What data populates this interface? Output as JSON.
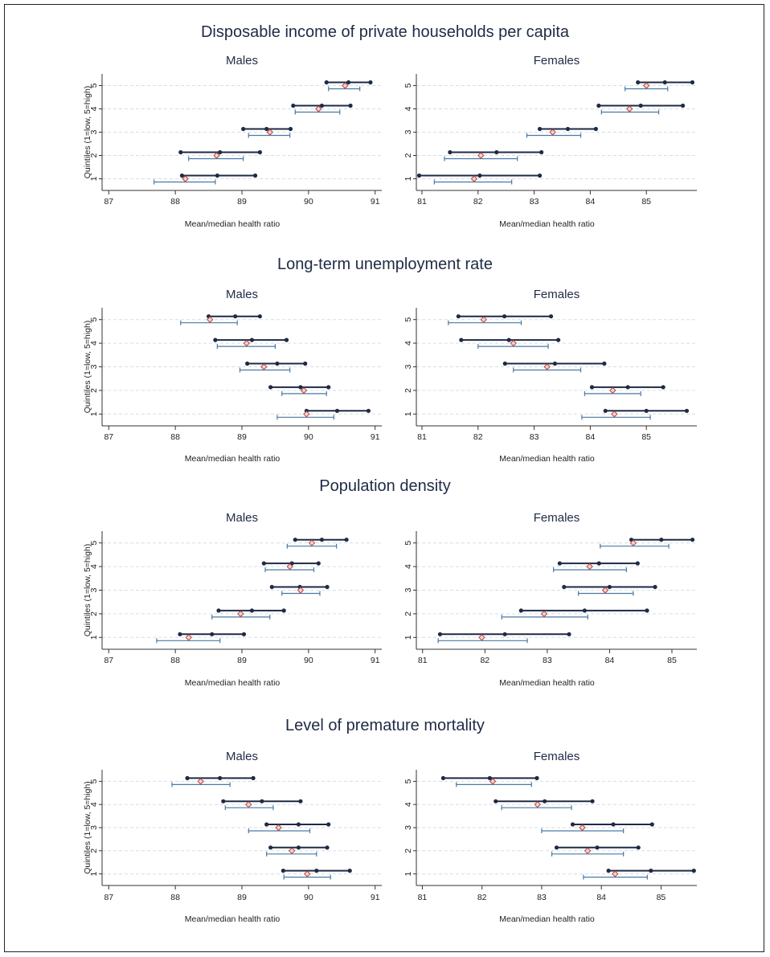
{
  "chart_data": [
    {
      "type": "dot-range",
      "title": "Disposable income of private households per capita",
      "ylabel": "Quintiles (1=low, 5=high)",
      "xlabel": "Mean/median health ratio",
      "panels": [
        {
          "name": "Males",
          "xlim": [
            86.9,
            91.1
          ],
          "xticks": [
            87,
            88,
            89,
            90,
            91
          ],
          "ticks": [
            "87",
            "88",
            "89",
            "90",
            "91"
          ],
          "rows": [
            {
              "q": 1,
              "dark": [
                88.1,
                88.63,
                89.2
              ],
              "red": 88.15,
              "ci": [
                87.68,
                88.6
              ]
            },
            {
              "q": 2,
              "dark": [
                88.08,
                88.67,
                89.27
              ],
              "red": 88.62,
              "ci": [
                88.2,
                89.02
              ]
            },
            {
              "q": 3,
              "dark": [
                89.02,
                89.37,
                89.73
              ],
              "red": 89.42,
              "ci": [
                89.1,
                89.72
              ]
            },
            {
              "q": 4,
              "dark": [
                89.77,
                90.2,
                90.63
              ],
              "red": 90.15,
              "ci": [
                89.8,
                90.47
              ]
            },
            {
              "q": 5,
              "dark": [
                90.27,
                90.6,
                90.93
              ],
              "red": 90.55,
              "ci": [
                90.3,
                90.77
              ]
            }
          ]
        },
        {
          "name": "Females",
          "xlim": [
            80.9,
            85.9
          ],
          "xticks": [
            81,
            82,
            83,
            84,
            85
          ],
          "ticks": [
            "81",
            "82",
            "83",
            "84",
            "85"
          ],
          "rows": [
            {
              "q": 1,
              "dark": [
                80.95,
                82.03,
                83.1
              ],
              "red": 81.93,
              "ci": [
                81.22,
                82.6
              ]
            },
            {
              "q": 2,
              "dark": [
                81.5,
                82.33,
                83.13
              ],
              "red": 82.05,
              "ci": [
                81.4,
                82.7
              ]
            },
            {
              "q": 3,
              "dark": [
                83.1,
                83.6,
                84.1
              ],
              "red": 83.33,
              "ci": [
                82.87,
                83.83
              ]
            },
            {
              "q": 4,
              "dark": [
                84.15,
                84.9,
                85.65
              ],
              "red": 84.7,
              "ci": [
                84.2,
                85.22
              ]
            },
            {
              "q": 5,
              "dark": [
                84.85,
                85.33,
                85.82
              ],
              "red": 85.0,
              "ci": [
                84.62,
                85.38
              ]
            }
          ]
        }
      ]
    },
    {
      "type": "dot-range",
      "title": "Long-term unemployment rate",
      "ylabel": "Quintiles (1=low, 5=high)",
      "xlabel": "Mean/median health ratio",
      "panels": [
        {
          "name": "Males",
          "xlim": [
            86.9,
            91.1
          ],
          "xticks": [
            87,
            88,
            89,
            90,
            91
          ],
          "ticks": [
            "87",
            "88",
            "89",
            "90",
            "91"
          ],
          "rows": [
            {
              "q": 1,
              "dark": [
                89.97,
                90.43,
                90.9
              ],
              "red": 89.97,
              "ci": [
                89.53,
                90.38
              ]
            },
            {
              "q": 2,
              "dark": [
                89.43,
                89.88,
                90.3
              ],
              "red": 89.93,
              "ci": [
                89.6,
                90.27
              ]
            },
            {
              "q": 3,
              "dark": [
                89.08,
                89.53,
                89.95
              ],
              "red": 89.33,
              "ci": [
                88.97,
                89.72
              ]
            },
            {
              "q": 4,
              "dark": [
                88.6,
                89.15,
                89.67
              ],
              "red": 89.07,
              "ci": [
                88.63,
                89.5
              ]
            },
            {
              "q": 5,
              "dark": [
                88.5,
                88.9,
                89.27
              ],
              "red": 88.52,
              "ci": [
                88.08,
                88.93
              ]
            }
          ]
        },
        {
          "name": "Females",
          "xlim": [
            80.9,
            85.9
          ],
          "xticks": [
            81,
            82,
            83,
            84,
            85
          ],
          "ticks": [
            "81",
            "82",
            "83",
            "84",
            "85"
          ],
          "rows": [
            {
              "q": 1,
              "dark": [
                84.27,
                85.0,
                85.72
              ],
              "red": 84.43,
              "ci": [
                83.85,
                85.07
              ]
            },
            {
              "q": 2,
              "dark": [
                84.03,
                84.67,
                85.3
              ],
              "red": 84.4,
              "ci": [
                83.9,
                84.9
              ]
            },
            {
              "q": 3,
              "dark": [
                82.48,
                83.37,
                84.25
              ],
              "red": 83.23,
              "ci": [
                82.63,
                83.83
              ]
            },
            {
              "q": 4,
              "dark": [
                81.7,
                82.55,
                83.43
              ],
              "red": 82.63,
              "ci": [
                82.0,
                83.25
              ]
            },
            {
              "q": 5,
              "dark": [
                81.65,
                82.47,
                83.3
              ],
              "red": 82.1,
              "ci": [
                81.47,
                82.77
              ]
            }
          ]
        }
      ]
    },
    {
      "type": "dot-range",
      "title": "Population density",
      "ylabel": "Quintiles (1=low, 5=high)",
      "xlabel": "Mean/median health ratio",
      "panels": [
        {
          "name": "Males",
          "xlim": [
            86.9,
            91.1
          ],
          "xticks": [
            87,
            88,
            89,
            90,
            91
          ],
          "ticks": [
            "87",
            "88",
            "89",
            "90",
            "91"
          ],
          "rows": [
            {
              "q": 1,
              "dark": [
                88.07,
                88.55,
                89.03
              ],
              "red": 88.2,
              "ci": [
                87.72,
                88.67
              ]
            },
            {
              "q": 2,
              "dark": [
                88.65,
                89.15,
                89.63
              ],
              "red": 88.98,
              "ci": [
                88.55,
                89.42
              ]
            },
            {
              "q": 3,
              "dark": [
                89.45,
                89.87,
                90.28
              ],
              "red": 89.88,
              "ci": [
                89.6,
                90.17
              ]
            },
            {
              "q": 4,
              "dark": [
                89.33,
                89.75,
                90.15
              ],
              "red": 89.72,
              "ci": [
                89.35,
                90.08
              ]
            },
            {
              "q": 5,
              "dark": [
                89.8,
                90.2,
                90.57
              ],
              "red": 90.05,
              "ci": [
                89.68,
                90.42
              ]
            }
          ]
        },
        {
          "name": "Females",
          "xlim": [
            80.9,
            85.4
          ],
          "xticks": [
            81,
            82,
            83,
            84,
            85
          ],
          "ticks": [
            "81",
            "82",
            "83",
            "84",
            "85"
          ],
          "rows": [
            {
              "q": 1,
              "dark": [
                81.28,
                82.32,
                83.35
              ],
              "red": 81.95,
              "ci": [
                81.25,
                82.68
              ]
            },
            {
              "q": 2,
              "dark": [
                82.58,
                83.6,
                84.6
              ],
              "red": 82.95,
              "ci": [
                82.27,
                83.65
              ]
            },
            {
              "q": 3,
              "dark": [
                83.27,
                84.0,
                84.73
              ],
              "red": 83.93,
              "ci": [
                83.5,
                84.38
              ]
            },
            {
              "q": 4,
              "dark": [
                83.2,
                83.83,
                84.45
              ],
              "red": 83.68,
              "ci": [
                83.1,
                84.27
              ]
            },
            {
              "q": 5,
              "dark": [
                84.35,
                84.83,
                85.33
              ],
              "red": 84.38,
              "ci": [
                83.85,
                84.95
              ]
            }
          ]
        }
      ]
    },
    {
      "type": "dot-range",
      "title": "Level of premature mortality",
      "ylabel": "Quintiles (1=low, 5=high)",
      "xlabel": "Mean/median health ratio",
      "panels": [
        {
          "name": "Males",
          "xlim": [
            86.9,
            91.1
          ],
          "xticks": [
            87,
            88,
            89,
            90,
            91
          ],
          "ticks": [
            "87",
            "88",
            "89",
            "90",
            "91"
          ],
          "rows": [
            {
              "q": 1,
              "dark": [
                89.62,
                90.12,
                90.62
              ],
              "red": 89.98,
              "ci": [
                89.63,
                90.33
              ]
            },
            {
              "q": 2,
              "dark": [
                89.43,
                89.85,
                90.28
              ],
              "red": 89.75,
              "ci": [
                89.37,
                90.12
              ]
            },
            {
              "q": 3,
              "dark": [
                89.37,
                89.85,
                90.3
              ],
              "red": 89.55,
              "ci": [
                89.1,
                90.02
              ]
            },
            {
              "q": 4,
              "dark": [
                88.72,
                89.3,
                89.88
              ],
              "red": 89.1,
              "ci": [
                88.75,
                89.47
              ]
            },
            {
              "q": 5,
              "dark": [
                88.18,
                88.67,
                89.17
              ],
              "red": 88.38,
              "ci": [
                87.95,
                88.82
              ]
            }
          ]
        },
        {
          "name": "Females",
          "xlim": [
            80.9,
            85.6
          ],
          "xticks": [
            81,
            82,
            83,
            84,
            85
          ],
          "ticks": [
            "81",
            "82",
            "83",
            "84",
            "85"
          ],
          "rows": [
            {
              "q": 1,
              "dark": [
                84.12,
                84.83,
                85.55
              ],
              "red": 84.23,
              "ci": [
                83.7,
                84.77
              ]
            },
            {
              "q": 2,
              "dark": [
                83.25,
                83.93,
                84.62
              ],
              "red": 83.77,
              "ci": [
                83.17,
                84.37
              ]
            },
            {
              "q": 3,
              "dark": [
                83.52,
                84.2,
                84.85
              ],
              "red": 83.68,
              "ci": [
                83.0,
                84.37
              ]
            },
            {
              "q": 4,
              "dark": [
                82.23,
                83.05,
                83.85
              ],
              "red": 82.93,
              "ci": [
                82.33,
                83.5
              ]
            },
            {
              "q": 5,
              "dark": [
                81.35,
                82.13,
                82.92
              ],
              "red": 82.18,
              "ci": [
                81.57,
                82.83
              ]
            }
          ]
        }
      ]
    }
  ]
}
